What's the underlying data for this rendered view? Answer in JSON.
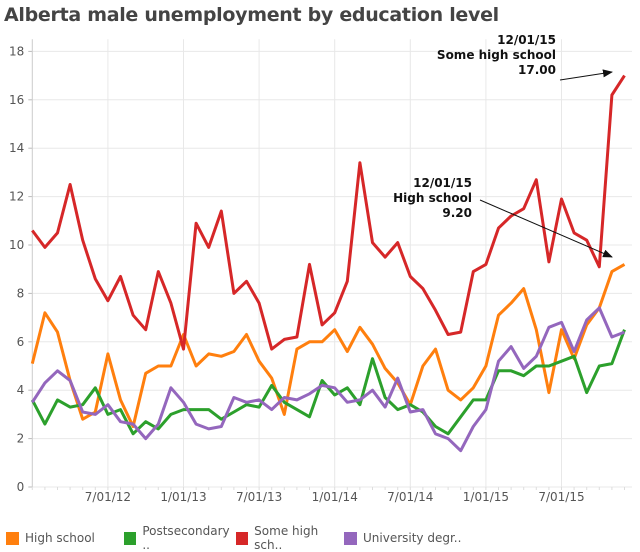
{
  "chart_data": {
    "type": "line",
    "title": "Alberta male unemployment by education level",
    "xlabel": "",
    "ylabel": "",
    "x_start": "1/01/12",
    "x_end": "12/01/15",
    "x_frequency": "monthly",
    "x_tick_labels": [
      "7/01/12",
      "1/01/13",
      "7/01/13",
      "1/01/14",
      "7/01/14",
      "1/01/15",
      "7/01/15"
    ],
    "y_ticks": [
      0,
      2,
      4,
      6,
      8,
      10,
      12,
      14,
      16,
      18
    ],
    "ylim": [
      0,
      18.5
    ],
    "grid": true,
    "legend_position": "bottom",
    "series": [
      {
        "name": "High school",
        "color": "#ff7f0e",
        "values": [
          5.1,
          7.2,
          6.4,
          4.4,
          2.8,
          3.1,
          5.5,
          3.6,
          2.5,
          4.7,
          5.0,
          5.0,
          6.3,
          5.0,
          5.5,
          5.4,
          5.6,
          6.3,
          5.2,
          4.5,
          3.0,
          5.7,
          6.0,
          6.0,
          6.5,
          5.6,
          6.6,
          5.9,
          4.9,
          4.3,
          3.4,
          5.0,
          5.7,
          4.0,
          3.6,
          4.1,
          5.0,
          7.1,
          7.6,
          8.2,
          6.5,
          3.9,
          6.5,
          5.3,
          6.7,
          7.4,
          8.9,
          9.2
        ]
      },
      {
        "name": "Postsecondary ..",
        "color": "#2ca02c",
        "values": [
          3.6,
          2.6,
          3.6,
          3.3,
          3.4,
          4.1,
          3.0,
          3.2,
          2.2,
          2.7,
          2.4,
          3.0,
          3.2,
          3.2,
          3.2,
          2.8,
          3.1,
          3.4,
          3.3,
          4.2,
          3.5,
          3.2,
          2.9,
          4.4,
          3.8,
          4.1,
          3.4,
          5.3,
          3.7,
          3.2,
          3.4,
          3.1,
          2.5,
          2.2,
          2.9,
          3.6,
          3.6,
          4.8,
          4.8,
          4.6,
          5.0,
          5.0,
          5.2,
          5.4,
          3.9,
          5.0,
          5.1,
          6.5
        ]
      },
      {
        "name": "Some high sch..",
        "color": "#d62728",
        "values": [
          10.6,
          9.9,
          10.5,
          12.5,
          10.2,
          8.6,
          7.7,
          8.7,
          7.1,
          6.5,
          8.9,
          7.6,
          5.7,
          10.9,
          9.9,
          11.4,
          8.0,
          8.5,
          7.6,
          5.7,
          6.1,
          6.2,
          9.2,
          6.7,
          7.2,
          8.5,
          13.4,
          10.1,
          9.5,
          10.1,
          8.7,
          8.2,
          7.3,
          6.3,
          6.4,
          8.9,
          9.2,
          10.7,
          11.2,
          11.5,
          12.7,
          9.3,
          11.9,
          10.5,
          10.2,
          9.1,
          16.2,
          17.0
        ]
      },
      {
        "name": "University degr..",
        "color": "#9467bd",
        "values": [
          3.5,
          4.3,
          4.8,
          4.4,
          3.1,
          3.0,
          3.4,
          2.7,
          2.6,
          2.0,
          2.6,
          4.1,
          3.5,
          2.6,
          2.4,
          2.5,
          3.7,
          3.5,
          3.6,
          3.2,
          3.7,
          3.6,
          3.85,
          4.2,
          4.1,
          3.5,
          3.6,
          4.0,
          3.3,
          4.5,
          3.1,
          3.2,
          2.2,
          2.0,
          1.5,
          2.5,
          3.2,
          5.2,
          5.8,
          4.9,
          5.4,
          6.6,
          6.8,
          5.6,
          6.9,
          7.4,
          6.2,
          6.4
        ]
      }
    ],
    "annotations": [
      {
        "lines": [
          "12/01/15",
          "Some high school",
          "17.00"
        ],
        "series": 2,
        "index": 47
      },
      {
        "lines": [
          "12/01/15",
          "High school",
          "9.20"
        ],
        "series": 0,
        "index": 47
      }
    ]
  }
}
